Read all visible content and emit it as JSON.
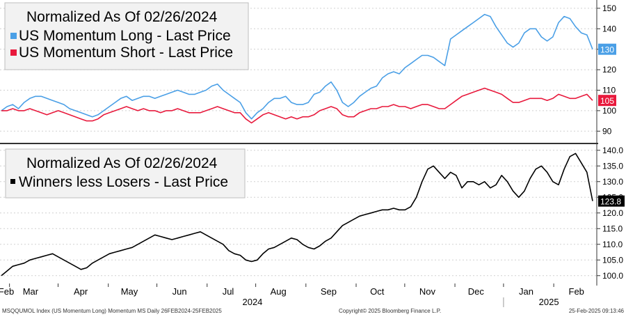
{
  "chart_data": [
    {
      "type": "line",
      "legend": {
        "title": "Normalized As Of 02/26/2024",
        "placement": "top-left",
        "entries": [
          "US Momentum Long - Last Price",
          "US Momentum Short - Last Price"
        ]
      },
      "ylim": [
        85,
        152
      ],
      "yticks": [
        "90",
        "100",
        "110",
        "120",
        "130",
        "140",
        "150"
      ],
      "grid": true,
      "series": [
        {
          "name": "US Momentum Long - Last Price",
          "color": "#4a9fe6",
          "last_label": "130",
          "values": [
            100,
            102,
            103,
            101,
            104,
            106,
            107,
            107,
            106,
            105,
            104,
            103,
            101,
            100,
            99,
            98,
            97,
            98,
            100,
            102,
            104,
            106,
            107,
            105,
            106,
            107,
            107,
            106,
            107,
            108,
            109,
            110,
            109,
            108,
            108,
            109,
            110,
            112,
            113,
            110,
            108,
            106,
            104,
            99,
            96,
            99,
            101,
            104,
            106,
            106,
            107,
            104,
            103,
            103,
            104,
            108,
            109,
            112,
            114,
            110,
            104,
            102,
            104,
            107,
            109,
            111,
            112,
            116,
            118,
            119,
            118,
            121,
            123,
            125,
            127,
            127,
            126,
            124,
            122,
            135,
            137,
            139,
            141,
            143,
            145,
            147,
            146,
            141,
            137,
            133,
            131,
            133,
            138,
            140,
            140,
            136,
            134,
            136,
            143,
            146,
            145,
            141,
            138,
            137,
            130
          ]
        },
        {
          "name": "US Momentum Short - Last Price",
          "color": "#e8193c",
          "last_label": "105",
          "values": [
            100,
            100,
            101,
            100,
            100,
            101,
            100,
            99,
            98,
            99,
            100,
            99,
            98,
            97,
            96,
            95,
            95,
            96,
            98,
            99,
            100,
            101,
            102,
            101,
            100,
            101,
            100,
            100,
            99,
            100,
            100,
            101,
            100,
            99,
            99,
            99,
            100,
            101,
            102,
            101,
            100,
            99,
            99,
            96,
            94,
            96,
            98,
            99,
            98,
            97,
            96,
            97,
            96,
            97,
            97,
            98,
            100,
            101,
            102,
            101,
            98,
            97,
            97,
            99,
            100,
            101,
            101,
            102,
            102,
            103,
            102,
            102,
            101,
            102,
            103,
            103,
            102,
            101,
            101,
            103,
            105,
            107,
            108,
            109,
            110,
            111,
            110,
            109,
            108,
            106,
            104,
            104,
            105,
            106,
            106,
            106,
            105,
            106,
            108,
            107,
            106,
            106,
            107,
            108,
            105
          ]
        }
      ]
    },
    {
      "type": "line",
      "legend": {
        "title": "Normalized As Of 02/26/2024",
        "placement": "top-left",
        "entries": [
          "Winners less Losers - Last Price"
        ]
      },
      "ylim": [
        97.5,
        141.5
      ],
      "yticks": [
        "100.0",
        "105.0",
        "110.0",
        "115.0",
        "120.0",
        "125.0",
        "130.0",
        "135.0",
        "140.0"
      ],
      "grid": true,
      "x_labels": [
        "Feb",
        "Mar",
        "Apr",
        "May",
        "Jun",
        "Jul",
        "Aug",
        "Sep",
        "Oct",
        "Nov",
        "Dec",
        "Jan",
        "Feb"
      ],
      "year_labels": [
        "2024",
        "2025"
      ],
      "series": [
        {
          "name": "Winners less Losers - Last Price",
          "color": "#000000",
          "last_label": "123.8",
          "values": [
            100,
            101.5,
            103,
            103.5,
            104,
            105,
            105.5,
            106,
            106.5,
            107,
            106,
            105,
            104,
            103,
            102,
            102.5,
            104,
            105,
            106,
            107,
            107.5,
            108,
            108.5,
            109,
            110,
            111,
            112,
            113,
            112.5,
            112,
            111.5,
            112,
            112.5,
            113,
            113.5,
            114,
            113,
            112,
            111,
            110,
            108,
            107,
            106.5,
            105,
            104.5,
            105,
            107,
            108.5,
            109,
            110,
            111,
            112,
            111.5,
            110,
            109,
            108.5,
            109.5,
            111,
            112,
            114,
            116,
            117,
            118,
            119,
            119.5,
            120,
            120.5,
            121,
            121,
            121.5,
            121,
            121,
            122,
            125,
            130,
            134,
            135,
            133,
            131,
            133,
            132,
            128,
            130,
            130,
            129,
            130,
            128,
            129,
            132,
            130,
            127,
            125,
            127,
            131,
            134,
            135,
            133,
            130,
            129,
            134,
            138,
            139,
            136,
            133,
            123.8
          ]
        }
      ]
    }
  ],
  "footer": {
    "left": "MSQQUMOL Index (US Momentum Long) Momentum MS  Daily 26FEB2024-25FEB2025",
    "center": "Copyright© 2025 Bloomberg Finance L.P.",
    "right": "25-Feb-2025 09:13:46"
  }
}
